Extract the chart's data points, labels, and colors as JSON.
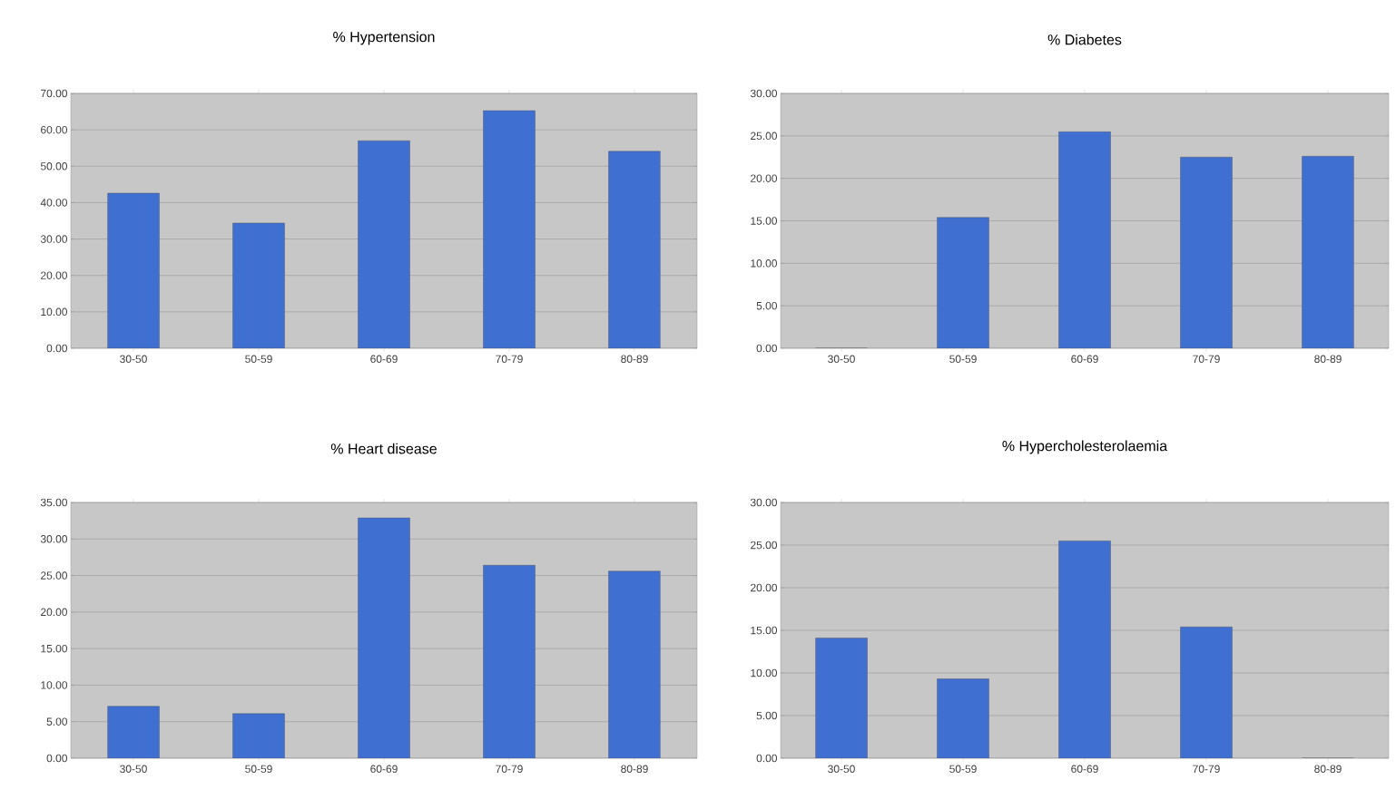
{
  "chart_data": [
    {
      "type": "bar",
      "title": "% Hypertension",
      "categories": [
        "30-50",
        "50-59",
        "60-69",
        "70-79",
        "80-89"
      ],
      "values": [
        42.6,
        34.4,
        57.0,
        65.3,
        54.1
      ],
      "color": "#3f6fd1",
      "ylim": [
        0,
        70
      ],
      "yticks": [
        {
          "value": 0,
          "label": "0.00"
        },
        {
          "value": 10,
          "label": "10.00"
        },
        {
          "value": 20,
          "label": "20.00"
        },
        {
          "value": 30,
          "label": "30.00"
        },
        {
          "value": 40,
          "label": "40.00"
        },
        {
          "value": 50,
          "label": "50.00"
        },
        {
          "value": 60,
          "label": "60.00"
        },
        {
          "value": 70,
          "label": "70.00"
        }
      ],
      "grid": "y"
    },
    {
      "type": "bar",
      "title": "% Diabetes",
      "categories": [
        "30-50",
        "50-59",
        "60-69",
        "70-79",
        "80-89"
      ],
      "values": [
        0,
        15.4,
        25.5,
        22.5,
        22.6
      ],
      "color": "#3f6fd1",
      "ylim": [
        0,
        30
      ],
      "yticks": [
        {
          "value": 0,
          "label": "0.00"
        },
        {
          "value": 5,
          "label": "5.00"
        },
        {
          "value": 10,
          "label": "10.00"
        },
        {
          "value": 15,
          "label": "15.00"
        },
        {
          "value": 20,
          "label": "20.00"
        },
        {
          "value": 25,
          "label": "25.00"
        },
        {
          "value": 30,
          "label": "30.00"
        }
      ],
      "grid": "y"
    },
    {
      "type": "bar",
      "title": "% Heart disease",
      "categories": [
        "30-50",
        "50-59",
        "60-69",
        "70-79",
        "80-89"
      ],
      "values": [
        7.1,
        6.1,
        32.9,
        26.4,
        25.6
      ],
      "color": "#3f6fd1",
      "ylim": [
        0,
        35
      ],
      "yticks": [
        {
          "value": 0,
          "label": "0.00"
        },
        {
          "value": 5,
          "label": "5.00"
        },
        {
          "value": 10,
          "label": "10.00"
        },
        {
          "value": 15,
          "label": "15.00"
        },
        {
          "value": 20,
          "label": "20.00"
        },
        {
          "value": 25,
          "label": "25.00"
        },
        {
          "value": 30,
          "label": "30.00"
        },
        {
          "value": 35,
          "label": "35.00"
        }
      ],
      "grid": "y"
    },
    {
      "type": "bar",
      "title": "% Hypercholesterolaemia",
      "categories": [
        "30-50",
        "50-59",
        "60-69",
        "70-79",
        "80-89"
      ],
      "values": [
        14.1,
        9.3,
        25.5,
        15.4,
        0
      ],
      "color": "#3f6fd1",
      "ylim": [
        0,
        30
      ],
      "yticks": [
        {
          "value": 0,
          "label": "0.00"
        },
        {
          "value": 5,
          "label": "5.00"
        },
        {
          "value": 10,
          "label": "10.00"
        },
        {
          "value": 15,
          "label": "15.00"
        },
        {
          "value": 20,
          "label": "20.00"
        },
        {
          "value": 25,
          "label": "25.00"
        },
        {
          "value": 30,
          "label": "30.00"
        }
      ],
      "grid": "y"
    }
  ]
}
